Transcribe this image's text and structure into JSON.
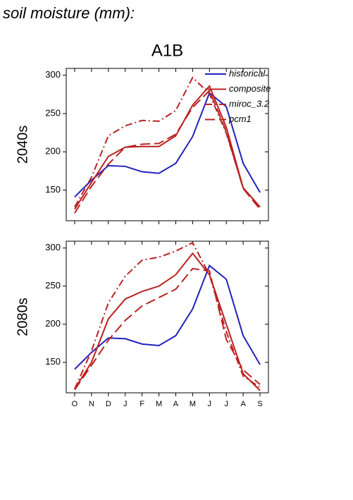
{
  "heading": "soil moisture (mm):",
  "chart_data": [
    {
      "type": "line",
      "title": "A1B",
      "ylabel": "2040s",
      "show_x_labels": false,
      "legend": "upper right",
      "categories": [
        "O",
        "N",
        "D",
        "J",
        "F",
        "M",
        "A",
        "M",
        "J",
        "J",
        "A",
        "S"
      ],
      "ylim": [
        110,
        309
      ],
      "yticks": [
        150,
        200,
        250,
        300
      ],
      "series": [
        {
          "name": "historical",
          "color": "#2222bb",
          "linestyle": "solid",
          "values": [
            141,
            163,
            182,
            181,
            174,
            172,
            185,
            220,
            277,
            259,
            185,
            147
          ]
        },
        {
          "name": "composite",
          "color": "#bb2222",
          "linestyle": "solid",
          "values": [
            125,
            160,
            194,
            206,
            207,
            207,
            221,
            261,
            286,
            232,
            153,
            128
          ]
        },
        {
          "name": "miroc_3.2",
          "color": "#bb2222",
          "linestyle": "dashdot",
          "values": [
            128,
            167,
            221,
            234,
            241,
            240,
            254,
            297,
            276,
            224,
            153,
            128
          ]
        },
        {
          "name": "pcm1",
          "color": "#bb2222",
          "linestyle": "dashed",
          "values": [
            120,
            155,
            184,
            206,
            210,
            211,
            223,
            258,
            280,
            226,
            152,
            125
          ]
        }
      ]
    },
    {
      "type": "line",
      "ylabel": "2080s",
      "show_x_labels": true,
      "categories": [
        "O",
        "N",
        "D",
        "J",
        "F",
        "M",
        "A",
        "M",
        "J",
        "J",
        "A",
        "S"
      ],
      "ylim": [
        110,
        309
      ],
      "yticks": [
        150,
        200,
        250,
        300
      ],
      "series": [
        {
          "name": "historical",
          "color": "#2222bb",
          "linestyle": "solid",
          "values": [
            141,
            163,
            182,
            181,
            174,
            172,
            185,
            220,
            277,
            259,
            185,
            147
          ]
        },
        {
          "name": "composite",
          "color": "#bb2222",
          "linestyle": "solid",
          "values": [
            115,
            150,
            207,
            233,
            243,
            250,
            265,
            293,
            265,
            200,
            135,
            113
          ]
        },
        {
          "name": "miroc_3.2",
          "color": "#bb2222",
          "linestyle": "dashdot",
          "values": [
            115,
            165,
            228,
            263,
            284,
            288,
            296,
            307,
            265,
            190,
            132,
            117
          ]
        },
        {
          "name": "pcm1",
          "color": "#bb2222",
          "linestyle": "dashed",
          "values": [
            114,
            146,
            179,
            205,
            224,
            235,
            246,
            273,
            270,
            180,
            140,
            121
          ]
        }
      ]
    }
  ]
}
